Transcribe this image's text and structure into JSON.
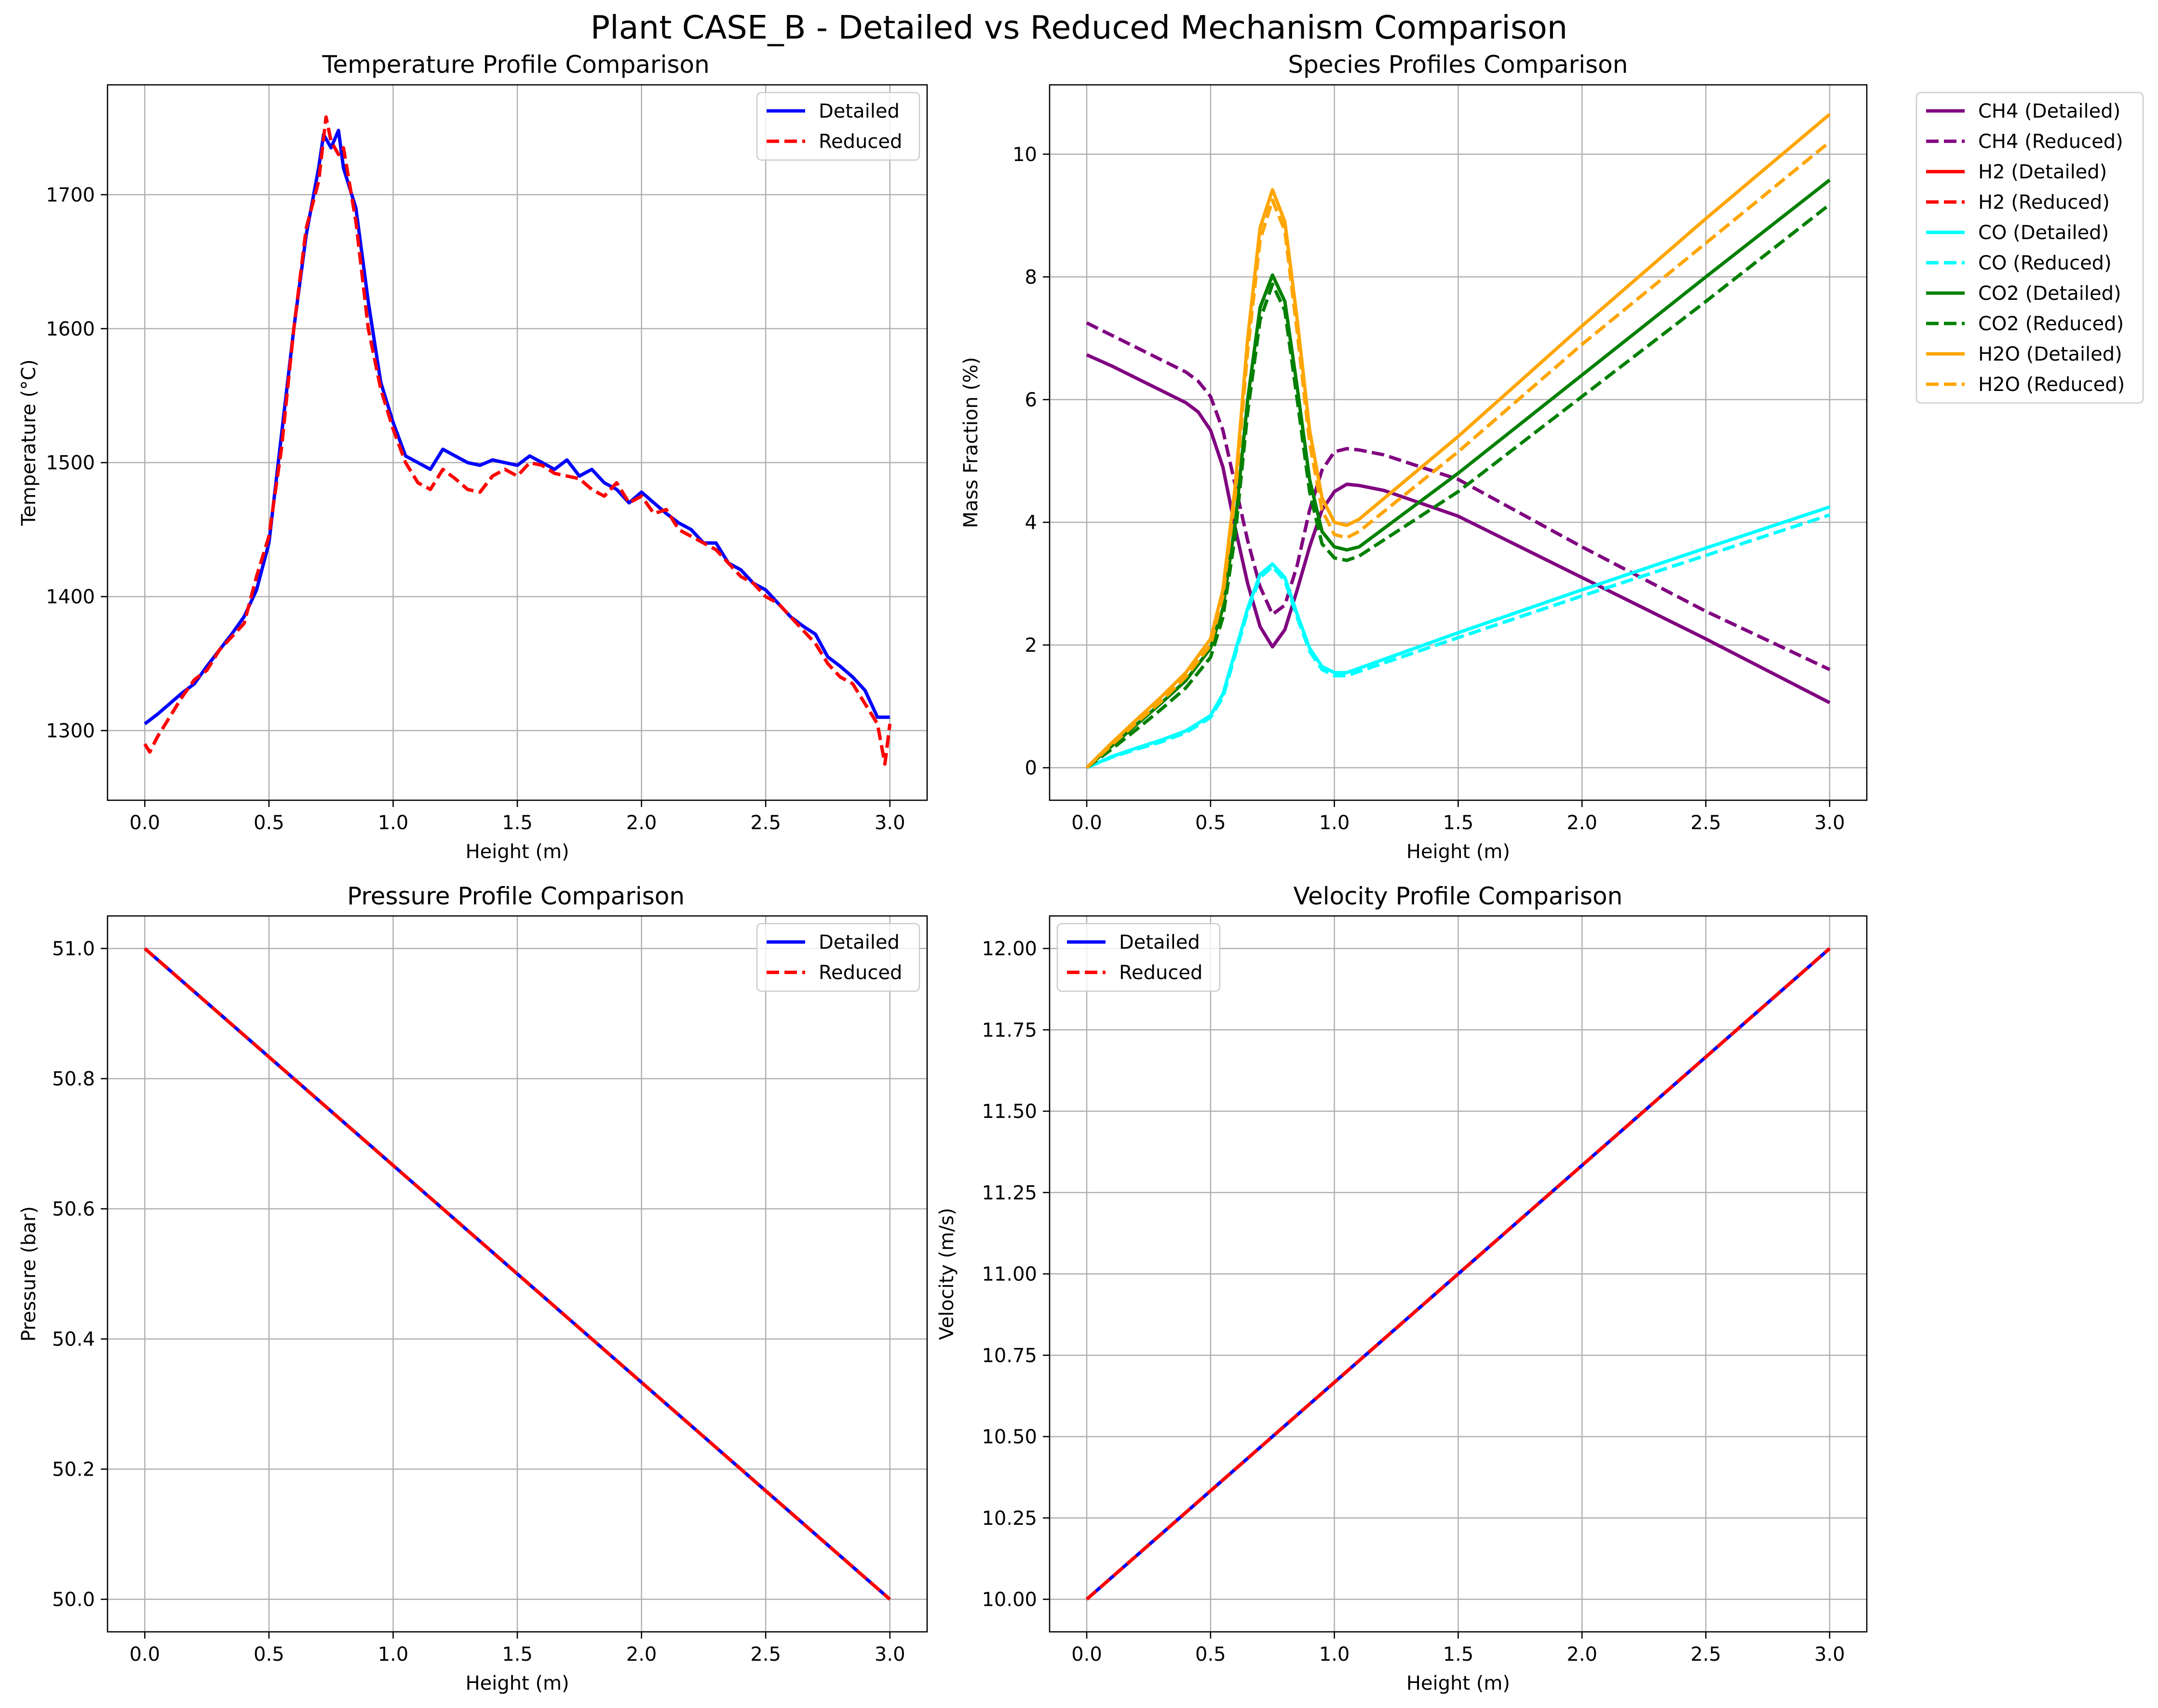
{
  "figure": {
    "title": "Plant CASE_B - Detailed vs Reduced Mechanism Comparison"
  },
  "chart_data": [
    {
      "id": "temperature",
      "type": "line",
      "title": "Temperature Profile Comparison",
      "xlabel": "Height (m)",
      "ylabel": "Temperature (°C)",
      "xlim": [
        -0.15,
        3.15
      ],
      "ylim": [
        1248,
        1782
      ],
      "xticks": [
        0.0,
        0.5,
        1.0,
        1.5,
        2.0,
        2.5,
        3.0
      ],
      "xtick_labels": [
        "0.0",
        "0.5",
        "1.0",
        "1.5",
        "2.0",
        "2.5",
        "3.0"
      ],
      "yticks": [
        1300,
        1400,
        1500,
        1600,
        1700
      ],
      "ytick_labels": [
        "1300",
        "1400",
        "1500",
        "1600",
        "1700"
      ],
      "grid": true,
      "legend": "top-right",
      "series": [
        {
          "name": "Detailed",
          "color": "#0000ff",
          "dash": "solid",
          "x": [
            0.0,
            0.05,
            0.1,
            0.15,
            0.2,
            0.25,
            0.3,
            0.35,
            0.4,
            0.45,
            0.5,
            0.55,
            0.6,
            0.65,
            0.7,
            0.72,
            0.75,
            0.78,
            0.8,
            0.85,
            0.9,
            0.95,
            1.0,
            1.05,
            1.1,
            1.15,
            1.2,
            1.25,
            1.3,
            1.35,
            1.4,
            1.45,
            1.5,
            1.55,
            1.6,
            1.65,
            1.7,
            1.75,
            1.8,
            1.85,
            1.9,
            1.95,
            2.0,
            2.05,
            2.1,
            2.15,
            2.2,
            2.25,
            2.3,
            2.35,
            2.4,
            2.45,
            2.5,
            2.55,
            2.6,
            2.65,
            2.7,
            2.75,
            2.8,
            2.85,
            2.9,
            2.95,
            3.0
          ],
          "y": [
            1305,
            1312,
            1320,
            1328,
            1335,
            1348,
            1360,
            1372,
            1385,
            1405,
            1440,
            1520,
            1600,
            1670,
            1720,
            1745,
            1735,
            1748,
            1720,
            1690,
            1620,
            1560,
            1530,
            1505,
            1500,
            1495,
            1510,
            1505,
            1500,
            1498,
            1502,
            1500,
            1498,
            1505,
            1500,
            1495,
            1502,
            1490,
            1495,
            1485,
            1480,
            1470,
            1478,
            1470,
            1462,
            1455,
            1450,
            1440,
            1440,
            1425,
            1420,
            1410,
            1405,
            1395,
            1385,
            1378,
            1372,
            1355,
            1348,
            1340,
            1330,
            1310,
            1310
          ]
        },
        {
          "name": "Reduced",
          "color": "#ff0000",
          "dash": "dashed",
          "x": [
            0.0,
            0.02,
            0.05,
            0.1,
            0.15,
            0.2,
            0.25,
            0.3,
            0.35,
            0.4,
            0.45,
            0.5,
            0.55,
            0.6,
            0.65,
            0.7,
            0.73,
            0.75,
            0.78,
            0.8,
            0.85,
            0.9,
            0.95,
            1.0,
            1.05,
            1.1,
            1.15,
            1.2,
            1.25,
            1.3,
            1.35,
            1.4,
            1.45,
            1.5,
            1.55,
            1.6,
            1.65,
            1.7,
            1.75,
            1.8,
            1.85,
            1.9,
            1.95,
            2.0,
            2.05,
            2.1,
            2.15,
            2.2,
            2.25,
            2.3,
            2.35,
            2.4,
            2.45,
            2.5,
            2.55,
            2.6,
            2.65,
            2.7,
            2.75,
            2.8,
            2.85,
            2.9,
            2.95,
            2.98,
            3.0
          ],
          "y": [
            1290,
            1284,
            1295,
            1310,
            1325,
            1338,
            1345,
            1360,
            1370,
            1380,
            1415,
            1445,
            1510,
            1600,
            1675,
            1710,
            1758,
            1740,
            1730,
            1735,
            1680,
            1600,
            1555,
            1525,
            1500,
            1485,
            1480,
            1495,
            1488,
            1480,
            1478,
            1490,
            1495,
            1490,
            1500,
            1498,
            1492,
            1490,
            1488,
            1480,
            1475,
            1485,
            1470,
            1475,
            1462,
            1465,
            1450,
            1445,
            1440,
            1435,
            1425,
            1415,
            1410,
            1400,
            1395,
            1385,
            1375,
            1365,
            1350,
            1340,
            1335,
            1320,
            1305,
            1275,
            1305
          ]
        }
      ]
    },
    {
      "id": "species",
      "type": "line",
      "title": "Species Profiles Comparison",
      "xlabel": "Height (m)",
      "ylabel": "Mass Fraction (%)",
      "xlim": [
        -0.15,
        3.15
      ],
      "ylim": [
        -0.53,
        11.13
      ],
      "xticks": [
        0.0,
        0.5,
        1.0,
        1.5,
        2.0,
        2.5,
        3.0
      ],
      "xtick_labels": [
        "0.0",
        "0.5",
        "1.0",
        "1.5",
        "2.0",
        "2.5",
        "3.0"
      ],
      "yticks": [
        0,
        2,
        4,
        6,
        8,
        10
      ],
      "ytick_labels": [
        "0",
        "2",
        "4",
        "6",
        "8",
        "10"
      ],
      "grid": true,
      "legend": "outside-right",
      "series": [
        {
          "name": "CH4 (Detailed)",
          "color": "#800080",
          "dash": "solid",
          "x": [
            0.0,
            0.1,
            0.2,
            0.3,
            0.4,
            0.45,
            0.5,
            0.55,
            0.6,
            0.65,
            0.7,
            0.75,
            0.8,
            0.85,
            0.9,
            0.95,
            1.0,
            1.05,
            1.1,
            1.2,
            1.5,
            2.0,
            2.5,
            3.0
          ],
          "y": [
            6.73,
            6.55,
            6.35,
            6.15,
            5.95,
            5.8,
            5.5,
            4.9,
            3.9,
            3.0,
            2.3,
            1.97,
            2.25,
            2.9,
            3.6,
            4.2,
            4.5,
            4.62,
            4.6,
            4.52,
            4.1,
            3.1,
            2.1,
            1.06
          ]
        },
        {
          "name": "CH4 (Reduced)",
          "color": "#800080",
          "dash": "dashed",
          "x": [
            0.0,
            0.1,
            0.2,
            0.3,
            0.4,
            0.45,
            0.5,
            0.55,
            0.6,
            0.65,
            0.7,
            0.75,
            0.8,
            0.85,
            0.9,
            0.95,
            1.0,
            1.05,
            1.1,
            1.2,
            1.5,
            2.0,
            2.5,
            3.0
          ],
          "y": [
            7.25,
            7.05,
            6.85,
            6.65,
            6.45,
            6.3,
            6.05,
            5.5,
            4.6,
            3.7,
            2.95,
            2.5,
            2.65,
            3.3,
            4.2,
            4.85,
            5.15,
            5.2,
            5.18,
            5.1,
            4.7,
            3.6,
            2.55,
            1.6
          ]
        },
        {
          "name": "H2 (Detailed)",
          "color": "#ff0000",
          "dash": "solid",
          "x": [],
          "y": []
        },
        {
          "name": "H2 (Reduced)",
          "color": "#ff0000",
          "dash": "dashed",
          "x": [],
          "y": []
        },
        {
          "name": "CO (Detailed)",
          "color": "#00ffff",
          "dash": "solid",
          "x": [
            0.0,
            0.1,
            0.2,
            0.3,
            0.4,
            0.5,
            0.55,
            0.6,
            0.65,
            0.7,
            0.75,
            0.8,
            0.85,
            0.9,
            0.95,
            1.0,
            1.05,
            1.5,
            2.0,
            2.5,
            3.0
          ],
          "y": [
            0.0,
            0.18,
            0.32,
            0.45,
            0.6,
            0.85,
            1.2,
            1.9,
            2.6,
            3.15,
            3.32,
            3.1,
            2.5,
            1.95,
            1.65,
            1.55,
            1.55,
            2.2,
            2.9,
            3.58,
            4.25
          ]
        },
        {
          "name": "CO (Reduced)",
          "color": "#00ffff",
          "dash": "dashed",
          "x": [
            0.0,
            0.1,
            0.2,
            0.3,
            0.4,
            0.5,
            0.55,
            0.6,
            0.65,
            0.7,
            0.75,
            0.8,
            0.85,
            0.9,
            0.95,
            1.0,
            1.05,
            1.5,
            2.0,
            2.5,
            3.0
          ],
          "y": [
            0.0,
            0.17,
            0.3,
            0.42,
            0.57,
            0.82,
            1.15,
            1.85,
            2.55,
            3.1,
            3.28,
            3.05,
            2.45,
            1.9,
            1.6,
            1.5,
            1.5,
            2.12,
            2.8,
            3.46,
            4.12
          ]
        },
        {
          "name": "CO2 (Detailed)",
          "color": "#008000",
          "dash": "solid",
          "x": [
            0.0,
            0.1,
            0.2,
            0.3,
            0.4,
            0.5,
            0.55,
            0.6,
            0.65,
            0.7,
            0.75,
            0.8,
            0.85,
            0.9,
            0.95,
            1.0,
            1.05,
            1.1,
            1.5,
            2.0,
            2.5,
            3.0
          ],
          "y": [
            0.0,
            0.35,
            0.7,
            1.05,
            1.42,
            1.95,
            2.6,
            4.0,
            6.0,
            7.5,
            8.03,
            7.6,
            6.2,
            4.7,
            3.85,
            3.6,
            3.55,
            3.6,
            4.8,
            6.4,
            8.0,
            9.58
          ]
        },
        {
          "name": "CO2 (Reduced)",
          "color": "#008000",
          "dash": "dashed",
          "x": [
            0.0,
            0.1,
            0.2,
            0.3,
            0.4,
            0.5,
            0.55,
            0.6,
            0.65,
            0.7,
            0.75,
            0.8,
            0.85,
            0.9,
            0.95,
            1.0,
            1.05,
            1.1,
            1.5,
            2.0,
            2.5,
            3.0
          ],
          "y": [
            0.0,
            0.3,
            0.62,
            0.95,
            1.3,
            1.8,
            2.45,
            3.8,
            5.8,
            7.3,
            7.88,
            7.45,
            6.0,
            4.5,
            3.65,
            3.42,
            3.38,
            3.45,
            4.5,
            6.05,
            7.6,
            9.18
          ]
        },
        {
          "name": "H2O (Detailed)",
          "color": "#ffa500",
          "dash": "solid",
          "x": [
            0.0,
            0.1,
            0.2,
            0.3,
            0.4,
            0.5,
            0.55,
            0.6,
            0.65,
            0.7,
            0.75,
            0.8,
            0.85,
            0.9,
            0.95,
            1.0,
            1.05,
            1.1,
            1.5,
            2.0,
            2.5,
            3.0
          ],
          "y": [
            0.0,
            0.4,
            0.78,
            1.15,
            1.55,
            2.1,
            2.9,
            4.6,
            7.0,
            8.8,
            9.42,
            8.9,
            7.3,
            5.5,
            4.4,
            4.0,
            3.95,
            4.05,
            5.4,
            7.2,
            8.95,
            10.65
          ]
        },
        {
          "name": "H2O (Reduced)",
          "color": "#ffa500",
          "dash": "dashed",
          "x": [
            0.0,
            0.1,
            0.2,
            0.3,
            0.4,
            0.5,
            0.55,
            0.6,
            0.65,
            0.7,
            0.75,
            0.8,
            0.85,
            0.9,
            0.95,
            1.0,
            1.05,
            1.1,
            1.5,
            2.0,
            2.5,
            3.0
          ],
          "y": [
            0.0,
            0.37,
            0.73,
            1.08,
            1.48,
            2.0,
            2.8,
            4.45,
            6.8,
            8.6,
            9.25,
            8.75,
            7.1,
            5.3,
            4.2,
            3.8,
            3.75,
            3.85,
            5.15,
            6.9,
            8.55,
            10.2
          ]
        }
      ]
    },
    {
      "id": "pressure",
      "type": "line",
      "title": "Pressure Profile Comparison",
      "xlabel": "Height (m)",
      "ylabel": "Pressure (bar)",
      "xlim": [
        -0.15,
        3.15
      ],
      "ylim": [
        49.95,
        51.05
      ],
      "xticks": [
        0.0,
        0.5,
        1.0,
        1.5,
        2.0,
        2.5,
        3.0
      ],
      "xtick_labels": [
        "0.0",
        "0.5",
        "1.0",
        "1.5",
        "2.0",
        "2.5",
        "3.0"
      ],
      "yticks": [
        50.0,
        50.2,
        50.4,
        50.6,
        50.8,
        51.0
      ],
      "ytick_labels": [
        "50.0",
        "50.2",
        "50.4",
        "50.6",
        "50.8",
        "51.0"
      ],
      "grid": true,
      "legend": "top-right",
      "series": [
        {
          "name": "Detailed",
          "color": "#0000ff",
          "dash": "solid",
          "x": [
            0.0,
            3.0
          ],
          "y": [
            51.0,
            50.0
          ]
        },
        {
          "name": "Reduced",
          "color": "#ff0000",
          "dash": "dashed",
          "x": [
            0.0,
            3.0
          ],
          "y": [
            51.0,
            50.0
          ]
        }
      ]
    },
    {
      "id": "velocity",
      "type": "line",
      "title": "Velocity Profile Comparison",
      "xlabel": "Height (m)",
      "ylabel": "Velocity (m/s)",
      "xlim": [
        -0.15,
        3.15
      ],
      "ylim": [
        9.9,
        12.1
      ],
      "xticks": [
        0.0,
        0.5,
        1.0,
        1.5,
        2.0,
        2.5,
        3.0
      ],
      "xtick_labels": [
        "0.0",
        "0.5",
        "1.0",
        "1.5",
        "2.0",
        "2.5",
        "3.0"
      ],
      "yticks": [
        10.0,
        10.25,
        10.5,
        10.75,
        11.0,
        11.25,
        11.5,
        11.75,
        12.0
      ],
      "ytick_labels": [
        "10.00",
        "10.25",
        "10.50",
        "10.75",
        "11.00",
        "11.25",
        "11.50",
        "11.75",
        "12.00"
      ],
      "grid": true,
      "legend": "top-left",
      "series": [
        {
          "name": "Detailed",
          "color": "#0000ff",
          "dash": "solid",
          "x": [
            0.0,
            3.0
          ],
          "y": [
            10.0,
            12.0
          ]
        },
        {
          "name": "Reduced",
          "color": "#ff0000",
          "dash": "dashed",
          "x": [
            0.0,
            3.0
          ],
          "y": [
            10.0,
            12.0
          ]
        }
      ]
    }
  ]
}
